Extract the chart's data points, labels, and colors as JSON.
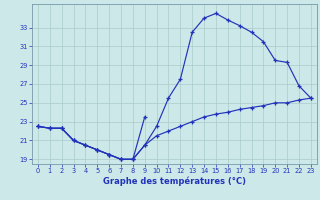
{
  "title": "Graphe des températures (°C)",
  "bg_color": "#cce8e8",
  "line_color": "#2233bb",
  "grid_color": "#aacccc",
  "curve1_x": [
    0,
    1,
    2,
    3,
    4,
    5,
    6,
    7,
    8,
    9
  ],
  "curve1_y": [
    22.5,
    22.3,
    22.3,
    21.0,
    20.5,
    20.0,
    19.5,
    19.0,
    19.0,
    23.5
  ],
  "curve2_x": [
    0,
    1,
    2,
    3,
    4,
    5,
    6,
    7,
    8,
    9,
    10,
    11,
    12,
    13,
    14,
    15,
    16,
    17,
    18,
    19,
    20,
    21,
    22,
    23
  ],
  "curve2_y": [
    22.5,
    22.3,
    22.3,
    21.0,
    20.5,
    20.0,
    19.5,
    19.0,
    19.0,
    20.5,
    21.5,
    22.0,
    22.5,
    23.0,
    23.5,
    23.8,
    24.0,
    24.3,
    24.5,
    24.7,
    25.0,
    25.0,
    25.3,
    25.5
  ],
  "curve3_x": [
    0,
    1,
    2,
    3,
    4,
    5,
    6,
    7,
    8,
    9,
    10,
    11,
    12,
    13,
    14,
    15,
    16,
    17,
    18,
    19,
    20,
    21,
    22,
    23
  ],
  "curve3_y": [
    22.5,
    22.3,
    22.3,
    21.0,
    20.5,
    20.0,
    19.5,
    19.0,
    19.0,
    20.5,
    22.5,
    25.5,
    27.5,
    32.5,
    34.0,
    34.5,
    33.8,
    33.2,
    32.5,
    31.5,
    29.5,
    29.3,
    26.8,
    25.5
  ],
  "ylim": [
    18.5,
    35.5
  ],
  "yticks": [
    19,
    21,
    23,
    25,
    27,
    29,
    31,
    33
  ],
  "xlim": [
    -0.5,
    23.5
  ],
  "xticks": [
    0,
    1,
    2,
    3,
    4,
    5,
    6,
    7,
    8,
    9,
    10,
    11,
    12,
    13,
    14,
    15,
    16,
    17,
    18,
    19,
    20,
    21,
    22,
    23
  ]
}
